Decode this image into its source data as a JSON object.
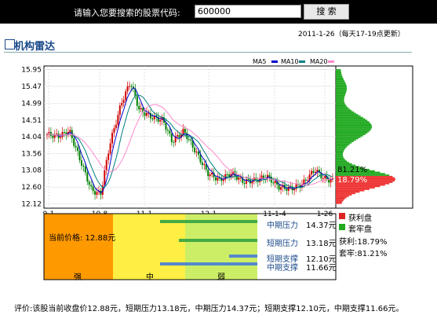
{
  "search": {
    "label": "请输入您要搜索的股票代码:",
    "value": "600000",
    "button": "搜 索"
  },
  "update_time": "2011-1-26（每天17-19点更新）",
  "page_title": "机构雷达",
  "legend": {
    "ma5": "MA5",
    "ma10": "MA10",
    "ma20": "MA20"
  },
  "chart": {
    "y_ticks": [
      "15.95",
      "15.47",
      "14.99",
      "14.51",
      "14.04",
      "13.56",
      "13.08",
      "12.60",
      "12.12"
    ],
    "x_ticks": [
      "9-1",
      "10-8",
      "11-1",
      "12-1",
      "11-1-4",
      "1-26"
    ],
    "profit_pct_label": "81.21%",
    "loss_pct_label": "18.79%"
  },
  "levels": {
    "current": "当前价格: 12.88元",
    "mid_pressure": "中期压力",
    "mid_pressure_val": "14.37元",
    "short_pressure": "短期压力",
    "short_pressure_val": "13.18元",
    "short_support": "短期支撑",
    "short_support_val": "12.10元",
    "mid_support": "中期支撑",
    "mid_support_val": "11.66元",
    "zone_strong": "强",
    "zone_mid": "中",
    "zone_weak": "弱"
  },
  "side_legend": {
    "profit_label": "获利盘",
    "trapped_label": "套牢盘",
    "profit_value": "获利:18.79%",
    "trapped_value": "套牢:81.21%"
  },
  "bottom_text": "评价:该股当前收盘价12.88元，短期压力13.18元，中期压力14.37元；短期支撑12.10元，中期支撑11.66元。",
  "colors": {
    "ma5": "#0000cc",
    "ma10": "#008080",
    "ma20": "#ff88cc",
    "up": "#d00000",
    "down": "#008000"
  }
}
